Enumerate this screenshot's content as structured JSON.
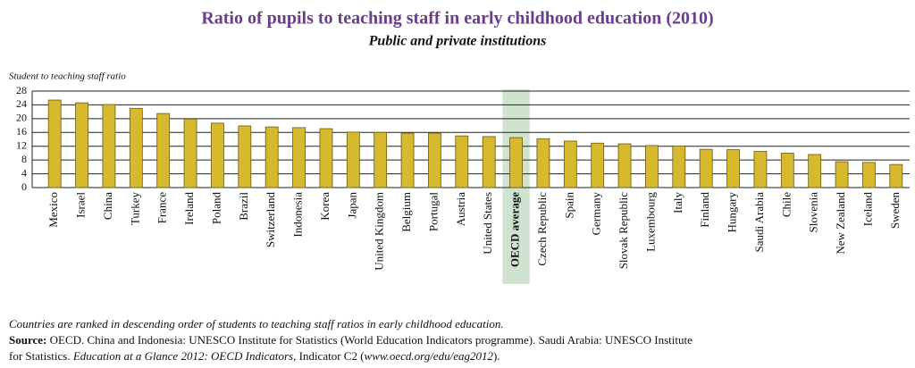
{
  "chart_data": {
    "type": "bar",
    "title": "Ratio of pupils to teaching staff in early childhood education (2010)",
    "subtitle": "Public and private institutions",
    "y_label": "Student to teaching staff ratio",
    "categories": [
      "Mexico",
      "Israel",
      "China",
      "Turkey",
      "France",
      "Ireland",
      "Poland",
      "Brazil",
      "Switzerland",
      "Indonesia",
      "Korea",
      "Japan",
      "United Kingdom",
      "Belgium",
      "Portugal",
      "Austria",
      "United States",
      "OECD average",
      "Czech Republic",
      "Spain",
      "Germany",
      "Slovak Republic",
      "Luxembourg",
      "Italy",
      "Finland",
      "Hungary",
      "Saudi Arabia",
      "Chile",
      "Slovenia",
      "New Zealand",
      "Iceland",
      "Sweden"
    ],
    "values": [
      25.4,
      24.6,
      24.1,
      23.0,
      21.5,
      19.9,
      18.7,
      17.9,
      17.6,
      17.4,
      17.1,
      16.1,
      16.0,
      15.8,
      15.8,
      15.0,
      14.8,
      14.5,
      14.2,
      13.5,
      12.9,
      12.7,
      12.2,
      12.1,
      11.1,
      11.0,
      10.5,
      10.0,
      9.6,
      7.5,
      7.3,
      6.7
    ],
    "color": "#d6b92c",
    "highlight": 17,
    "highlight_color": "#cfe3cf",
    "ylim": [
      0,
      28
    ],
    "yticks": [
      0,
      4,
      8,
      12,
      16,
      20,
      24,
      28
    ],
    "grid": true,
    "note": "Countries are ranked in descending order of students to teaching staff ratios in early childhood education.",
    "source": [
      [
        {
          "text": "Source:",
          "style": "bold"
        },
        {
          "text": " OECD. China and Indonesia: UNESCO Institute for Statistics (World Education Indicators programme). Saudi Arabia: UNESCO Institute",
          "style": "normal"
        }
      ],
      [
        {
          "text": "for Statistics. ",
          "style": "normal"
        },
        {
          "text": "Education at a Glance 2012: OECD Indicators",
          "style": "italic"
        },
        {
          "text": ", Indicator C2 (",
          "style": "normal"
        },
        {
          "text": "www.oecd.org/edu/eag2012",
          "style": "italic"
        },
        {
          "text": ").",
          "style": "normal"
        }
      ]
    ]
  }
}
